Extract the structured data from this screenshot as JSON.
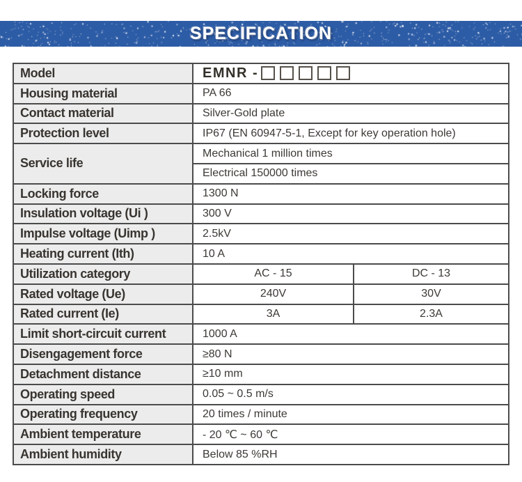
{
  "banner": {
    "title": "SPECIFICATION",
    "bg_color": "#2d5ca6",
    "text_color": "#ffffff"
  },
  "table": {
    "border_color": "#4b4b4b",
    "label_bg": "#ececec",
    "rows": [
      {
        "type": "model",
        "label": "Model",
        "value_prefix": "EMNR -",
        "box_count": 5
      },
      {
        "type": "simple",
        "label": "Housing material",
        "value": "PA 66"
      },
      {
        "type": "simple",
        "label": "Contact material",
        "value": "Silver-Gold plate"
      },
      {
        "type": "simple",
        "label": "Protection level",
        "value": "IP67 (EN 60947-5-1, Except for key operation hole)"
      },
      {
        "type": "rowspan",
        "label": "Service life",
        "values": [
          "Mechanical 1 million times",
          "Electrical 150000 times"
        ]
      },
      {
        "type": "simple",
        "label": "Locking force",
        "value": "1300 N"
      },
      {
        "type": "simple",
        "label": "Insulation voltage (Ui )",
        "value": "300 V"
      },
      {
        "type": "simple",
        "label": "Impulse voltage (Uimp )",
        "value": "2.5kV"
      },
      {
        "type": "simple",
        "label": "Heating current (Ith)",
        "value": "10 A"
      },
      {
        "type": "dual",
        "label": "Utilization category",
        "values": [
          "AC - 15",
          "DC - 13"
        ]
      },
      {
        "type": "dual",
        "label": "Rated voltage (Ue)",
        "values": [
          "240V",
          "30V"
        ]
      },
      {
        "type": "dual",
        "label": "Rated current (Ie)",
        "values": [
          "3A",
          "2.3A"
        ]
      },
      {
        "type": "simple",
        "label": "Limit short-circuit current",
        "value": "1000 A"
      },
      {
        "type": "simple",
        "label": "Disengagement force",
        "value": "≥80 N"
      },
      {
        "type": "simple",
        "label": "Detachment distance",
        "value": "≥10 mm"
      },
      {
        "type": "simple",
        "label": "Operating speed",
        "value": "0.05 ~ 0.5 m/s"
      },
      {
        "type": "simple",
        "label": "Operating frequency",
        "value": "20 times / minute"
      },
      {
        "type": "simple",
        "label": "Ambient temperature",
        "value": "- 20 ℃ ~ 60 ℃"
      },
      {
        "type": "simple",
        "label": "Ambient humidity",
        "value": "Below 85 %RH"
      }
    ]
  }
}
